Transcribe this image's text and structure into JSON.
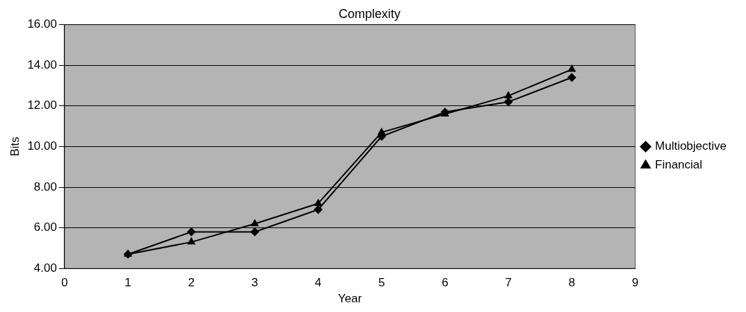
{
  "chart_data": {
    "type": "line",
    "title": "Complexity",
    "xlabel": "Year",
    "ylabel": "Bits",
    "x": [
      1,
      2,
      3,
      4,
      5,
      6,
      7,
      8
    ],
    "xlim": [
      0,
      9
    ],
    "xticks": [
      0,
      1,
      2,
      3,
      4,
      5,
      6,
      7,
      8,
      9
    ],
    "ylim": [
      4,
      16
    ],
    "yticks": [
      {
        "value": 4,
        "label": "4.00"
      },
      {
        "value": 6,
        "label": "6.00"
      },
      {
        "value": 8,
        "label": "8.00"
      },
      {
        "value": 10,
        "label": "10.00"
      },
      {
        "value": 12,
        "label": "12.00"
      },
      {
        "value": 14,
        "label": "14.00"
      },
      {
        "value": 16,
        "label": "16.00"
      }
    ],
    "grid": "y",
    "legend": "right",
    "series": [
      {
        "name": "Multiobjective",
        "color": "#000000",
        "marker": "diamond",
        "values": [
          4.7,
          5.8,
          5.8,
          6.9,
          10.5,
          11.7,
          12.2,
          13.4
        ]
      },
      {
        "name": "Financial",
        "color": "#000000",
        "marker": "triangle",
        "values": [
          4.7,
          5.3,
          6.2,
          7.2,
          10.7,
          11.6,
          12.5,
          13.8
        ]
      }
    ]
  }
}
